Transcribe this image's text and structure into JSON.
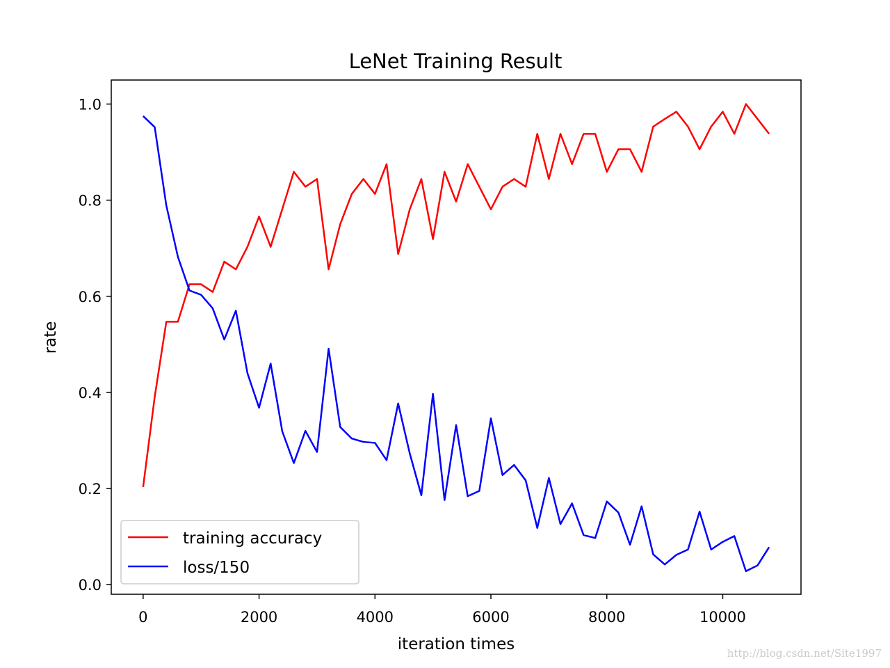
{
  "watermark": "http://blog.csdn.net/Site1997",
  "colors": {
    "accuracy": "#ff0000",
    "loss": "#0000ff",
    "axis": "#000000",
    "legend_border": "#cccccc"
  },
  "chart_data": {
    "type": "line",
    "title": "LeNet Training Result",
    "xlabel": "iteration times",
    "ylabel": "rate",
    "xlim": [
      -550,
      11350
    ],
    "ylim": [
      -0.02,
      1.05
    ],
    "xticks": [
      0,
      2000,
      4000,
      6000,
      8000,
      10000
    ],
    "yticks": [
      0.0,
      0.2,
      0.4,
      0.6,
      0.8,
      1.0
    ],
    "xtick_labels": [
      "0",
      "2000",
      "4000",
      "6000",
      "8000",
      "10000"
    ],
    "ytick_labels": [
      "0.0",
      "0.2",
      "0.4",
      "0.6",
      "0.8",
      "1.0"
    ],
    "grid": false,
    "legend_position": "lower-left",
    "x": [
      0,
      200,
      400,
      600,
      800,
      1000,
      1200,
      1400,
      1600,
      1800,
      2000,
      2200,
      2400,
      2600,
      2800,
      3000,
      3200,
      3400,
      3600,
      3800,
      4000,
      4200,
      4400,
      4600,
      4800,
      5000,
      5200,
      5400,
      5600,
      5800,
      6000,
      6200,
      6400,
      6600,
      6800,
      7000,
      7200,
      7400,
      7600,
      7800,
      8000,
      8200,
      8400,
      8600,
      8800,
      9000,
      9200,
      9400,
      9600,
      9800,
      10000,
      10200,
      10400,
      10600,
      10800
    ],
    "series": [
      {
        "name": "training accuracy",
        "color": "#ff0000",
        "values": [
          0.203,
          0.391,
          0.547,
          0.547,
          0.625,
          0.625,
          0.609,
          0.672,
          0.656,
          0.703,
          0.766,
          0.703,
          0.781,
          0.859,
          0.828,
          0.844,
          0.656,
          0.75,
          0.813,
          0.844,
          0.813,
          0.875,
          0.688,
          0.781,
          0.844,
          0.719,
          0.859,
          0.797,
          0.875,
          0.828,
          0.781,
          0.828,
          0.844,
          0.828,
          0.938,
          0.844,
          0.938,
          0.875,
          0.938,
          0.938,
          0.859,
          0.906,
          0.906,
          0.859,
          0.953,
          0.969,
          0.984,
          0.953,
          0.906,
          0.953,
          0.984,
          0.938,
          1.0,
          0.969,
          0.938
        ]
      },
      {
        "name": "loss/150",
        "color": "#0000ff",
        "values": [
          0.975,
          0.952,
          0.789,
          0.682,
          0.612,
          0.603,
          0.575,
          0.51,
          0.57,
          0.44,
          0.368,
          0.46,
          0.319,
          0.253,
          0.32,
          0.276,
          0.491,
          0.328,
          0.304,
          0.297,
          0.295,
          0.259,
          0.377,
          0.273,
          0.186,
          0.397,
          0.176,
          0.332,
          0.184,
          0.195,
          0.346,
          0.228,
          0.249,
          0.217,
          0.118,
          0.222,
          0.126,
          0.169,
          0.103,
          0.097,
          0.173,
          0.15,
          0.083,
          0.163,
          0.063,
          0.042,
          0.062,
          0.073,
          0.152,
          0.073,
          0.089,
          0.101,
          0.028,
          0.04,
          0.078
        ]
      }
    ]
  }
}
